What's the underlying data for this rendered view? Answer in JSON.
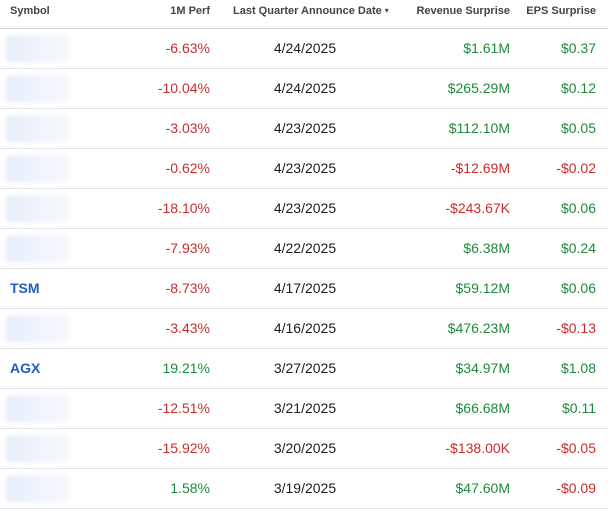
{
  "columns": {
    "symbol": "Symbol",
    "perf": "1M Perf",
    "date": "Last Quarter Announce Date",
    "date_sort_icon": "caret-down-icon",
    "revenue": "Revenue Surprise",
    "eps": "EPS Surprise"
  },
  "rows": [
    {
      "symbol": "",
      "perf": "-6.63%",
      "date": "4/24/2025",
      "revenue": "$1.61M",
      "eps": "$0.37"
    },
    {
      "symbol": "",
      "perf": "-10.04%",
      "date": "4/24/2025",
      "revenue": "$265.29M",
      "eps": "$0.12"
    },
    {
      "symbol": "",
      "perf": "-3.03%",
      "date": "4/23/2025",
      "revenue": "$112.10M",
      "eps": "$0.05"
    },
    {
      "symbol": "",
      "perf": "-0.62%",
      "date": "4/23/2025",
      "revenue": "-$12.69M",
      "eps": "-$0.02"
    },
    {
      "symbol": "",
      "perf": "-18.10%",
      "date": "4/23/2025",
      "revenue": "-$243.67K",
      "eps": "$0.06"
    },
    {
      "symbol": "",
      "perf": "-7.93%",
      "date": "4/22/2025",
      "revenue": "$6.38M",
      "eps": "$0.24"
    },
    {
      "symbol": "TSM",
      "perf": "-8.73%",
      "date": "4/17/2025",
      "revenue": "$59.12M",
      "eps": "$0.06"
    },
    {
      "symbol": "",
      "perf": "-3.43%",
      "date": "4/16/2025",
      "revenue": "$476.23M",
      "eps": "-$0.13"
    },
    {
      "symbol": "AGX",
      "perf": "19.21%",
      "date": "3/27/2025",
      "revenue": "$34.97M",
      "eps": "$1.08"
    },
    {
      "symbol": "",
      "perf": "-12.51%",
      "date": "3/21/2025",
      "revenue": "$66.68M",
      "eps": "$0.11"
    },
    {
      "symbol": "",
      "perf": "-15.92%",
      "date": "3/20/2025",
      "revenue": "-$138.00K",
      "eps": "-$0.05"
    },
    {
      "symbol": "",
      "perf": "1.58%",
      "date": "3/19/2025",
      "revenue": "$47.60M",
      "eps": "-$0.09"
    }
  ],
  "colors": {
    "negative": "#cc2b2b",
    "positive": "#1e8a3c",
    "link": "#1f5fbf"
  }
}
